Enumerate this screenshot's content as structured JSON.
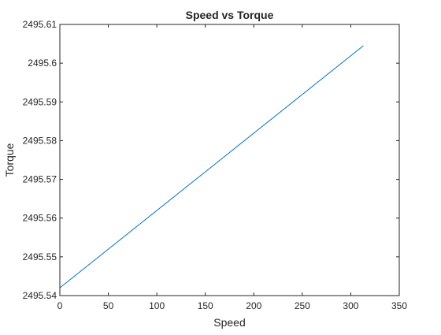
{
  "chart_data": {
    "type": "line",
    "title": "Speed vs Torque",
    "xlabel": "Speed",
    "ylabel": "Torque",
    "xlim": [
      0,
      350
    ],
    "ylim": [
      2495.54,
      2495.61
    ],
    "xticks": [
      0,
      50,
      100,
      150,
      200,
      250,
      300,
      350
    ],
    "xtick_labels": [
      "0",
      "50",
      "100",
      "150",
      "200",
      "250",
      "300",
      "350"
    ],
    "yticks": [
      2495.54,
      2495.55,
      2495.56,
      2495.57,
      2495.58,
      2495.59,
      2495.6,
      2495.61
    ],
    "ytick_labels": [
      "2495.54",
      "2495.55",
      "2495.56",
      "2495.57",
      "2495.58",
      "2495.59",
      "2495.6",
      "2495.61"
    ],
    "grid": false,
    "series": [
      {
        "color": "#0072bd",
        "x": [
          0,
          313
        ],
        "y": [
          2495.542,
          2495.6045
        ]
      }
    ]
  }
}
